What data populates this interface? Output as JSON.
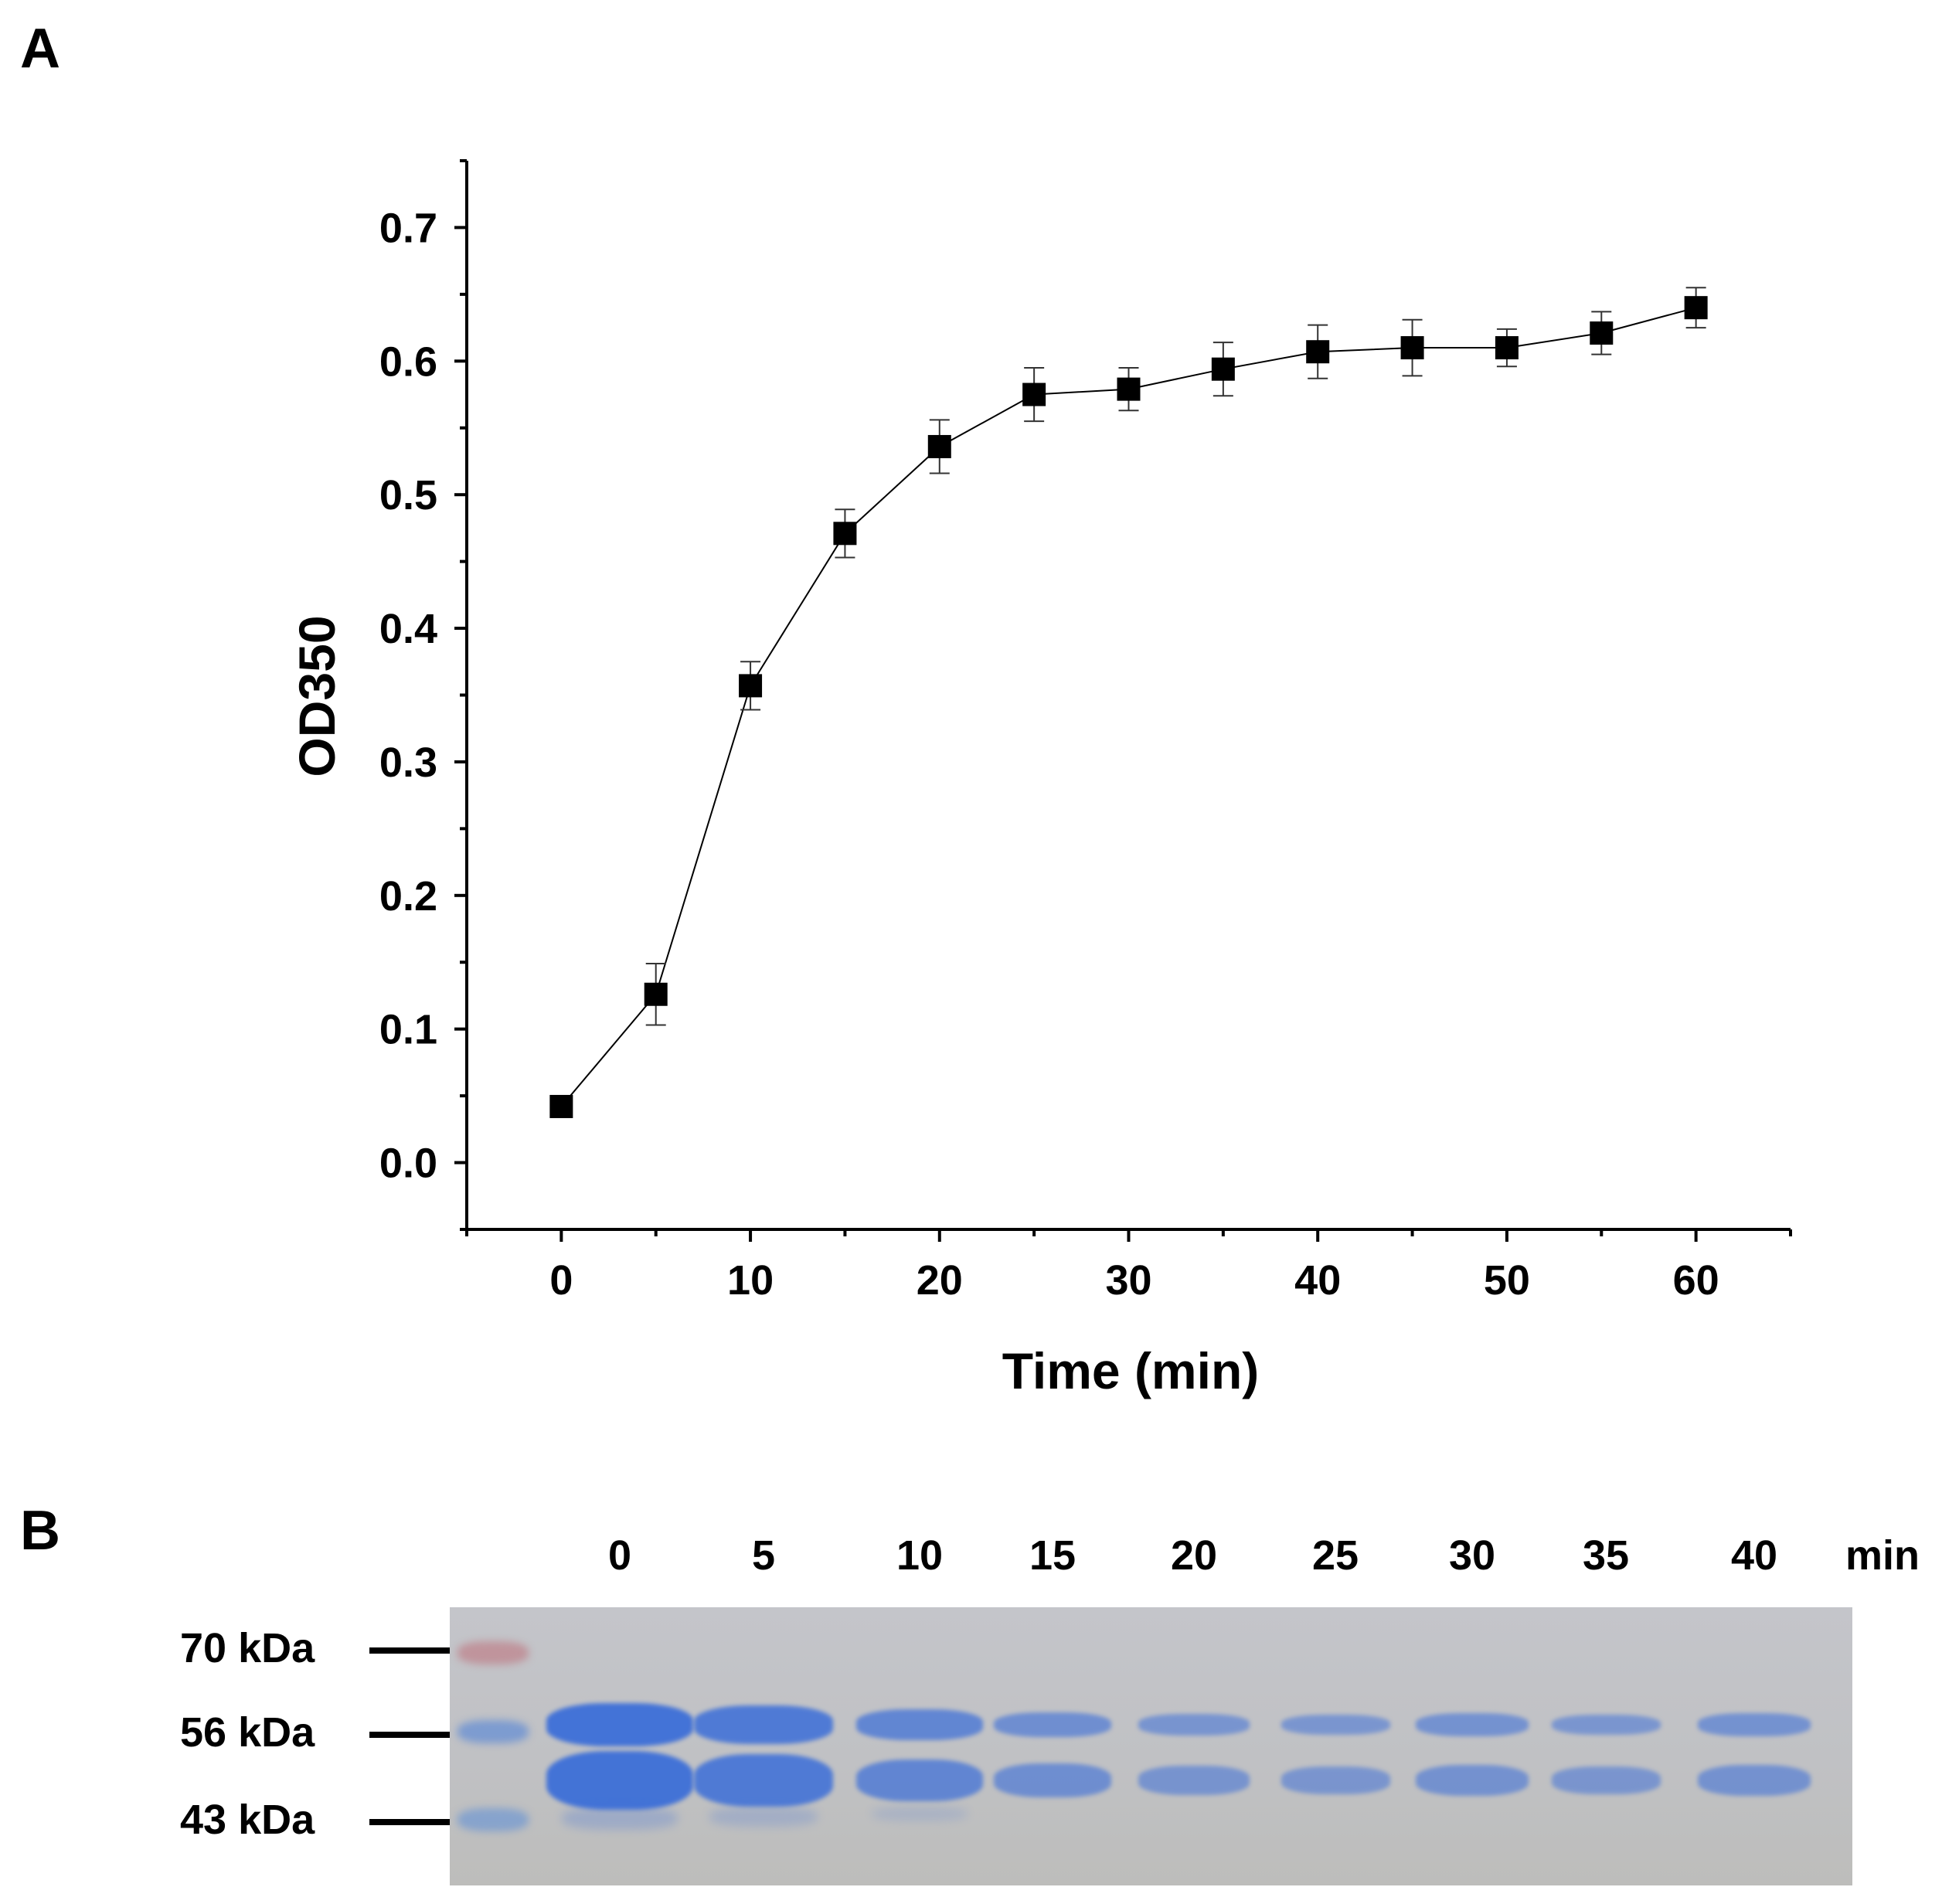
{
  "panel_a": {
    "letter": "A"
  },
  "panel_b": {
    "letter": "B"
  },
  "chart_data": {
    "type": "line",
    "title": "",
    "xlabel": "Time (min)",
    "ylabel": "OD350",
    "xlim": [
      -5,
      65
    ],
    "ylim": [
      -0.05,
      0.75
    ],
    "x_ticks": [
      "0",
      "10",
      "20",
      "30",
      "40",
      "50",
      "60"
    ],
    "y_ticks": [
      "0.0",
      "0.1",
      "0.2",
      "0.3",
      "0.4",
      "0.5",
      "0.6",
      "0.7"
    ],
    "marker": "square",
    "color": "#000000",
    "series": [
      {
        "x": [
          0,
          5,
          10,
          15,
          20,
          25,
          30,
          35,
          40,
          45,
          50,
          55,
          60
        ],
        "y": [
          0.042,
          0.126,
          0.357,
          0.471,
          0.536,
          0.575,
          0.579,
          0.594,
          0.607,
          0.61,
          0.61,
          0.621,
          0.64
        ],
        "error": [
          0.004,
          0.023,
          0.018,
          0.018,
          0.02,
          0.02,
          0.016,
          0.02,
          0.02,
          0.021,
          0.014,
          0.016,
          0.015
        ]
      }
    ]
  },
  "gel": {
    "lane_labels": [
      "0",
      "5",
      "10",
      "15",
      "20",
      "25",
      "30",
      "35",
      "40"
    ],
    "unit": "min",
    "markers": [
      "70 kDa",
      "56 kDa",
      "43 kDa"
    ],
    "band_color": "#3d6fd8",
    "band_intensity": [
      1.0,
      0.85,
      0.62,
      0.45,
      0.33,
      0.3,
      0.38,
      0.3,
      0.38
    ]
  }
}
